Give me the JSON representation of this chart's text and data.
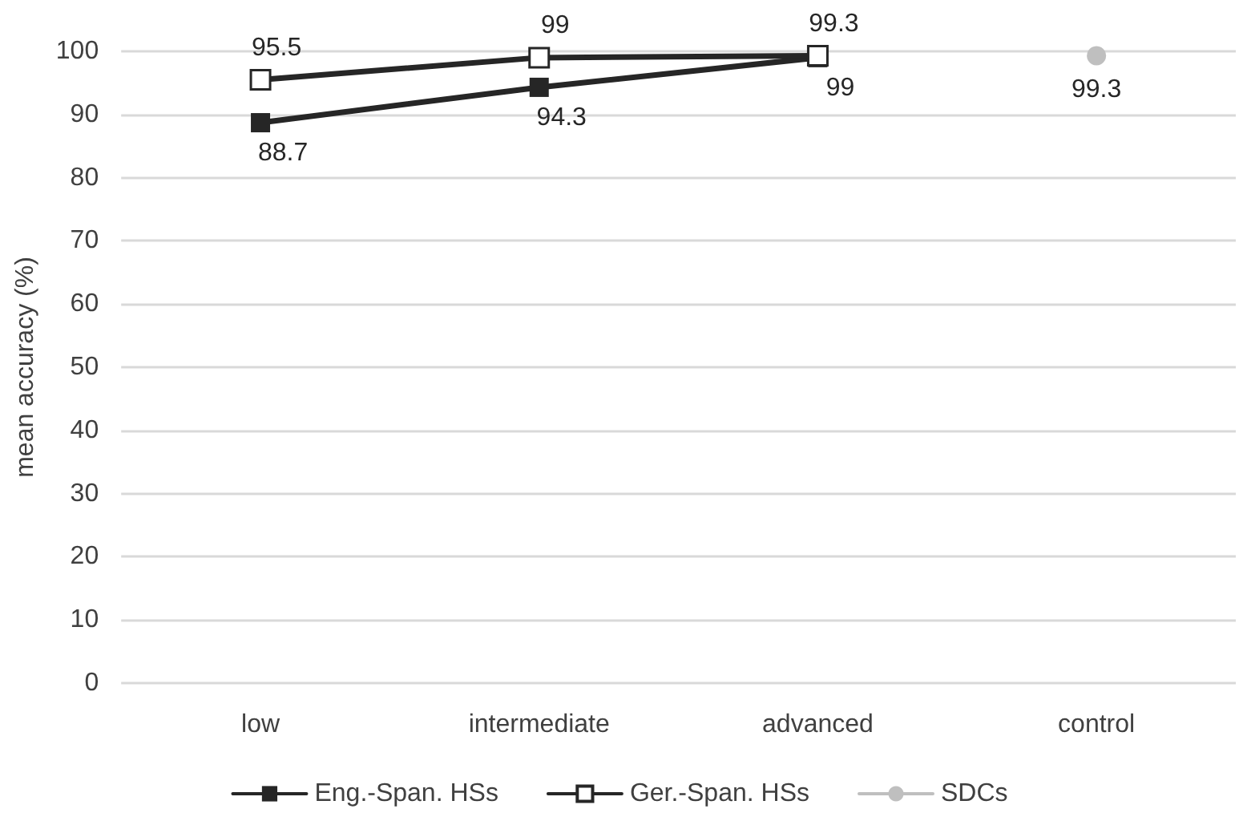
{
  "chart_data": {
    "type": "line",
    "ylabel": "mean accuracy (%)",
    "categories": [
      "low",
      "intermediate",
      "advanced",
      "control"
    ],
    "series": [
      {
        "name": "Eng.-Span. HSs",
        "color": "#262626",
        "marker": "square",
        "values": [
          88.7,
          94.3,
          99,
          null
        ]
      },
      {
        "name": "Ger.-Span. HSs",
        "color": "#262626",
        "marker": "square",
        "values": [
          95.5,
          99,
          99.3,
          null
        ]
      },
      {
        "name": "SDCs",
        "color": "#bfbfbf",
        "marker": "circle",
        "values": [
          null,
          null,
          null,
          99.3
        ]
      }
    ],
    "ylim": [
      0,
      100
    ],
    "yticks": [
      0,
      10,
      20,
      30,
      40,
      50,
      60,
      70,
      80,
      90,
      100
    ],
    "grid": "y",
    "legend": "bottom",
    "data_labels": true
  }
}
